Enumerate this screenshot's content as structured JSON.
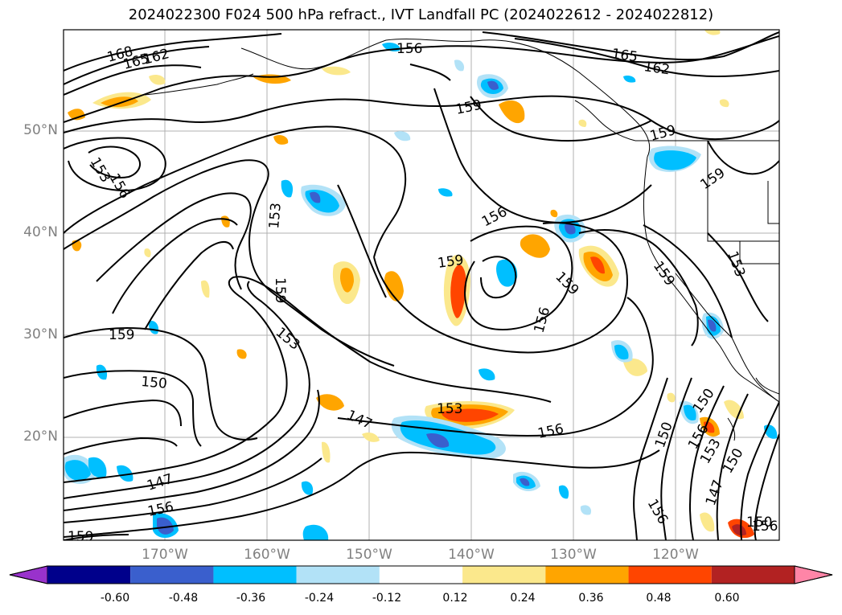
{
  "title": "2024022300 F024 500 hPa refract., IVT Landfall PC (2024022612 - 2024022812)",
  "lat_labels": [
    "50°N",
    "40°N",
    "30°N",
    "20°N"
  ],
  "lon_labels": [
    "170°W",
    "160°W",
    "150°W",
    "140°W",
    "130°W",
    "120°W"
  ],
  "contour_labels": [
    "168",
    "165",
    "162",
    "156",
    "159",
    "165",
    "162",
    "159",
    "159",
    "153",
    "156",
    "159",
    "153",
    "156",
    "159",
    "156",
    "159",
    "159",
    "153",
    "159",
    "153",
    "150",
    "153",
    "147",
    "150",
    "156",
    "156",
    "150",
    "153",
    "147",
    "150",
    "156",
    "147",
    "156",
    "159",
    "150",
    "156"
  ],
  "colorbar": {
    "ticks": [
      "-0.60",
      "-0.48",
      "-0.36",
      "-0.24",
      "-0.12",
      "0.12",
      "0.24",
      "0.36",
      "0.48",
      "0.60"
    ],
    "colors": [
      "#9932cc",
      "#00008b",
      "#3a5fcd",
      "#00bfff",
      "#b2e2f7",
      "#ffffff",
      "#fbe88c",
      "#ffa500",
      "#ff4500",
      "#b22222",
      "#ff85a7"
    ]
  }
}
